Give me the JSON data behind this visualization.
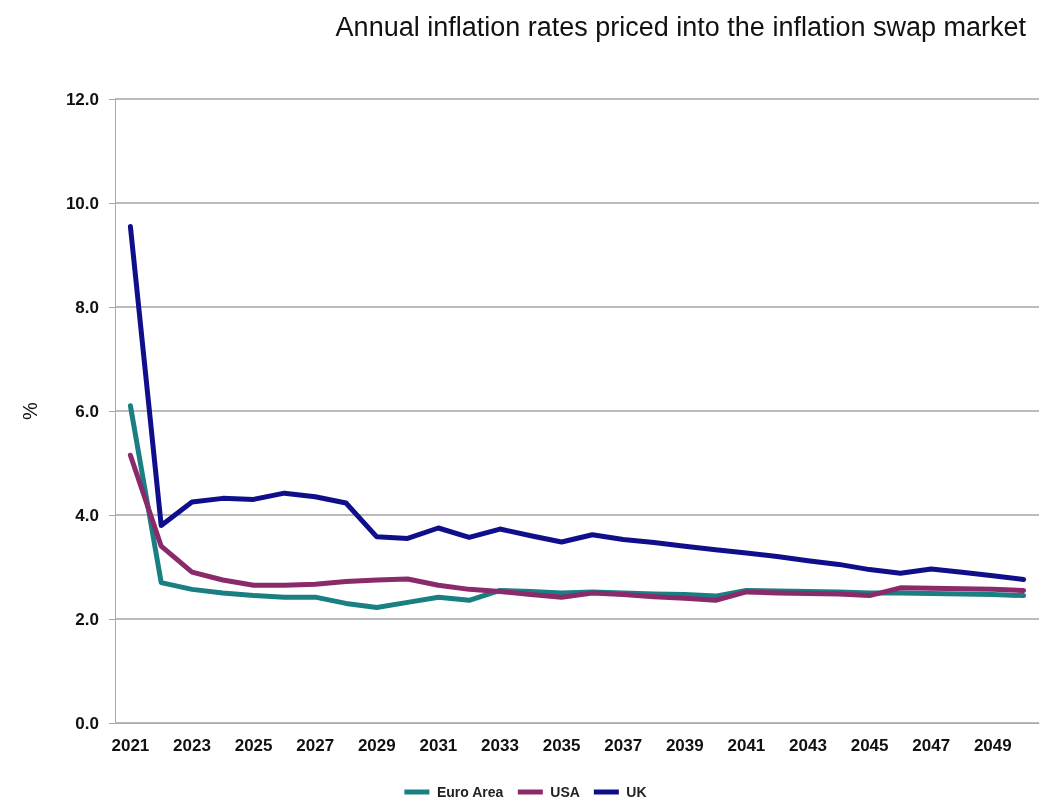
{
  "chart_data": {
    "type": "line",
    "title": "Annual inflation rates priced into the inflation swap market",
    "ylabel": "%",
    "categories": [
      "2021",
      null,
      "2023",
      null,
      "2025",
      null,
      "2027",
      null,
      "2029",
      null,
      "2031",
      null,
      "2033",
      null,
      "2035",
      null,
      "2037",
      null,
      "2039",
      null,
      "2041",
      null,
      "2043",
      null,
      "2045",
      null,
      "2047",
      null,
      "2049",
      null
    ],
    "series": [
      {
        "name": "Euro Area",
        "color": "#1a7f82",
        "values": [
          6.1,
          2.7,
          2.57,
          2.5,
          2.45,
          2.42,
          2.42,
          2.3,
          2.22,
          2.32,
          2.42,
          2.36,
          2.55,
          2.53,
          2.5,
          2.52,
          2.5,
          2.48,
          2.47,
          2.44,
          2.55,
          2.54,
          2.53,
          2.52,
          2.5,
          2.5,
          2.49,
          2.48,
          2.47,
          2.45
        ]
      },
      {
        "name": "USA",
        "color": "#8b2a6b",
        "values": [
          5.15,
          3.4,
          2.9,
          2.75,
          2.65,
          2.65,
          2.67,
          2.72,
          2.75,
          2.77,
          2.65,
          2.57,
          2.53,
          2.47,
          2.42,
          2.5,
          2.47,
          2.43,
          2.4,
          2.36,
          2.52,
          2.5,
          2.49,
          2.48,
          2.45,
          2.6,
          2.59,
          2.58,
          2.57,
          2.55
        ]
      },
      {
        "name": "UK",
        "color": "#0f0f8c",
        "values": [
          9.55,
          3.8,
          4.25,
          4.32,
          4.3,
          4.42,
          4.35,
          4.23,
          3.58,
          3.55,
          3.75,
          3.57,
          3.73,
          3.6,
          3.48,
          3.62,
          3.53,
          3.47,
          3.4,
          3.33,
          3.27,
          3.2,
          3.12,
          3.05,
          2.95,
          2.88,
          2.96,
          2.9,
          2.83,
          2.76
        ]
      }
    ],
    "ylim": [
      0,
      12
    ],
    "yticks": [
      {
        "value": 0,
        "label": "0.0"
      },
      {
        "value": 2,
        "label": "2.0"
      },
      {
        "value": 4,
        "label": "4.0"
      },
      {
        "value": 6,
        "label": "6.0"
      },
      {
        "value": 8,
        "label": "8.0"
      },
      {
        "value": 10,
        "label": "10.0"
      },
      {
        "value": 12,
        "label": "12.0"
      }
    ],
    "grid": "y",
    "legend": "bottom",
    "marker": "none",
    "line_style": "solid"
  }
}
